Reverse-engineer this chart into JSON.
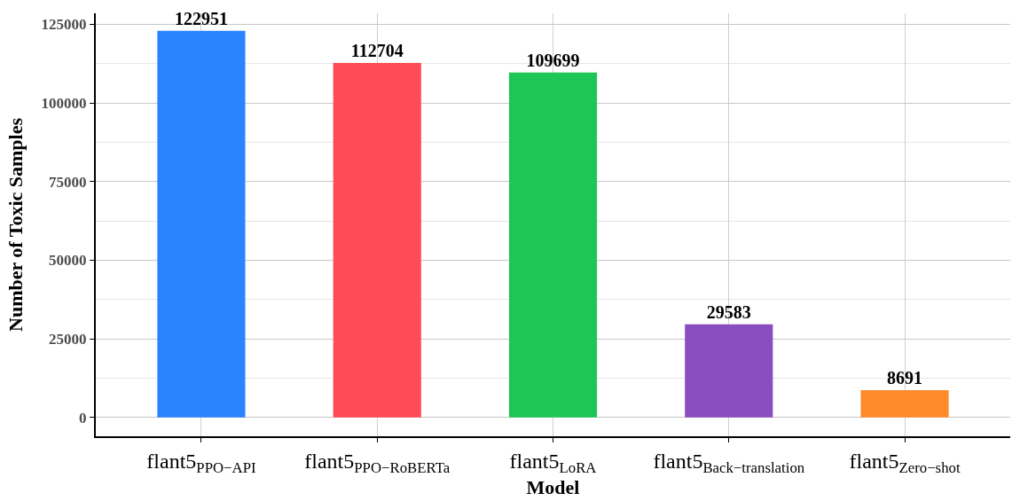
{
  "chart_data": {
    "type": "bar",
    "xlabel": "Model",
    "ylabel": "Number of Toxic Samples",
    "categories": [
      "flant5$_{PPO−API}$",
      "flant5$_{PPO−RoBERTa}$",
      "flant5$_{LoRA}$",
      "flant5$_{Back−translation}$",
      "flant5$_{Zero−shot}$"
    ],
    "values": [
      122951,
      112704,
      109699,
      29583,
      8691
    ],
    "colors": [
      "#2a83ff",
      "#ff4b55",
      "#1dc655",
      "#8a4dc0",
      "#ff8a2a"
    ],
    "ylim": [
      -6000,
      128500
    ],
    "yticks": [
      0,
      25000,
      50000,
      75000,
      100000,
      125000
    ],
    "grid": true,
    "data_labels": true
  }
}
